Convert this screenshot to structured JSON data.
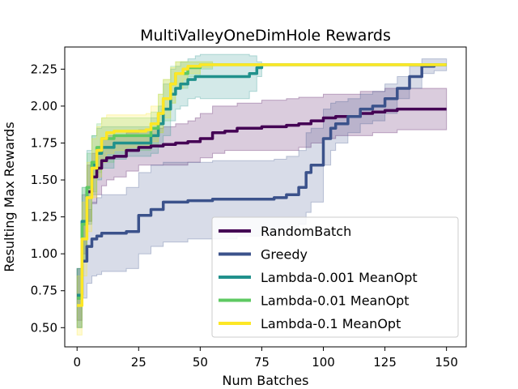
{
  "chart_data": {
    "type": "line",
    "title": "MultiValleyOneDimHole Rewards",
    "xlabel": "Num Batches",
    "ylabel": "Resulting Max Rewards",
    "xlim": [
      -5,
      158
    ],
    "ylim": [
      0.37,
      2.4
    ],
    "xticks": [
      0,
      25,
      50,
      75,
      100,
      125,
      150
    ],
    "xtick_labels": [
      "0",
      "25",
      "50",
      "75",
      "100",
      "125",
      "150"
    ],
    "yticks": [
      0.5,
      0.75,
      1.0,
      1.25,
      1.5,
      1.75,
      2.0,
      2.25
    ],
    "ytick_labels": [
      "0.50",
      "0.75",
      "1.00",
      "1.25",
      "1.50",
      "1.75",
      "2.00",
      "2.25"
    ],
    "grid": false,
    "legend_position": "lower-right",
    "series": [
      {
        "name": "RandomBatch",
        "color": "#440154",
        "x": [
          0,
          2,
          4,
          6,
          8,
          10,
          12,
          15,
          20,
          25,
          30,
          35,
          40,
          45,
          48,
          50,
          55,
          60,
          65,
          70,
          75,
          80,
          85,
          90,
          95,
          100,
          105,
          110,
          115,
          120,
          125,
          130,
          135,
          140,
          145,
          150
        ],
        "y": [
          0.72,
          1.2,
          1.42,
          1.52,
          1.58,
          1.63,
          1.65,
          1.66,
          1.7,
          1.72,
          1.73,
          1.74,
          1.75,
          1.76,
          1.76,
          1.78,
          1.82,
          1.83,
          1.85,
          1.85,
          1.86,
          1.86,
          1.87,
          1.88,
          1.9,
          1.92,
          1.93,
          1.93,
          1.95,
          1.96,
          1.97,
          1.98,
          1.98,
          1.98,
          1.98,
          1.98
        ],
        "lower": [
          0.55,
          1.0,
          1.22,
          1.34,
          1.4,
          1.46,
          1.5,
          1.52,
          1.56,
          1.6,
          1.6,
          1.6,
          1.6,
          1.62,
          1.62,
          1.65,
          1.68,
          1.7,
          1.7,
          1.7,
          1.7,
          1.7,
          1.7,
          1.72,
          1.75,
          1.78,
          1.8,
          1.8,
          1.8,
          1.82,
          1.82,
          1.84,
          1.84,
          1.84,
          1.84,
          1.84
        ],
        "upper": [
          0.9,
          1.4,
          1.6,
          1.68,
          1.72,
          1.78,
          1.8,
          1.8,
          1.82,
          1.84,
          1.85,
          1.86,
          1.88,
          1.9,
          1.92,
          1.95,
          2.0,
          2.0,
          2.02,
          2.02,
          2.04,
          2.04,
          2.05,
          2.06,
          2.06,
          2.08,
          2.08,
          2.08,
          2.1,
          2.1,
          2.12,
          2.12,
          2.12,
          2.12,
          2.12,
          2.12
        ]
      },
      {
        "name": "Greedy",
        "color": "#3b528b",
        "x": [
          0,
          2,
          4,
          6,
          8,
          10,
          15,
          20,
          25,
          30,
          35,
          40,
          45,
          50,
          55,
          60,
          65,
          70,
          75,
          80,
          85,
          90,
          93,
          95,
          100,
          103,
          105,
          110,
          115,
          120,
          125,
          130,
          135,
          140,
          145,
          150
        ],
        "y": [
          0.7,
          0.95,
          1.05,
          1.1,
          1.12,
          1.14,
          1.14,
          1.15,
          1.26,
          1.3,
          1.35,
          1.35,
          1.36,
          1.36,
          1.37,
          1.37,
          1.37,
          1.37,
          1.37,
          1.38,
          1.4,
          1.45,
          1.55,
          1.6,
          1.78,
          1.85,
          1.88,
          1.93,
          1.98,
          2.0,
          2.05,
          2.12,
          2.2,
          2.27,
          2.28,
          2.28
        ],
        "lower": [
          0.5,
          0.7,
          0.8,
          0.85,
          0.86,
          0.88,
          0.88,
          0.9,
          1.0,
          1.05,
          1.08,
          1.08,
          1.1,
          1.1,
          1.1,
          1.1,
          1.12,
          1.12,
          1.12,
          1.14,
          1.16,
          1.2,
          1.28,
          1.35,
          1.6,
          1.7,
          1.75,
          1.82,
          1.88,
          1.9,
          1.95,
          2.05,
          2.12,
          2.22,
          2.24,
          2.24
        ],
        "upper": [
          0.9,
          1.2,
          1.3,
          1.35,
          1.38,
          1.4,
          1.4,
          1.45,
          1.55,
          1.6,
          1.62,
          1.62,
          1.62,
          1.62,
          1.63,
          1.63,
          1.63,
          1.63,
          1.63,
          1.64,
          1.66,
          1.7,
          1.82,
          1.85,
          1.98,
          2.02,
          2.03,
          2.05,
          2.08,
          2.1,
          2.15,
          2.2,
          2.27,
          2.32,
          2.32,
          2.32
        ]
      },
      {
        "name": "Lambda-0.001 MeanOpt",
        "color": "#21918c",
        "x": [
          0,
          2,
          4,
          6,
          8,
          10,
          15,
          20,
          25,
          30,
          33,
          35,
          38,
          40,
          42,
          45,
          48,
          50,
          55,
          60,
          65,
          70,
          73,
          75,
          80,
          90,
          100,
          110,
          120,
          130,
          140,
          150
        ],
        "y": [
          0.72,
          1.22,
          1.45,
          1.6,
          1.68,
          1.72,
          1.75,
          1.75,
          1.75,
          1.8,
          1.88,
          1.98,
          2.08,
          2.12,
          2.15,
          2.18,
          2.2,
          2.2,
          2.2,
          2.2,
          2.2,
          2.22,
          2.26,
          2.28,
          2.28,
          2.28,
          2.28,
          2.28,
          2.28,
          2.28,
          2.28,
          2.28
        ],
        "lower": [
          0.5,
          0.95,
          1.2,
          1.4,
          1.5,
          1.58,
          1.64,
          1.66,
          1.66,
          1.68,
          1.72,
          1.8,
          1.9,
          1.98,
          2.0,
          2.05,
          2.06,
          2.05,
          2.05,
          2.05,
          2.05,
          2.1,
          2.2,
          2.28,
          2.28,
          2.28,
          2.28,
          2.28,
          2.28,
          2.28,
          2.28,
          2.28
        ],
        "upper": [
          0.9,
          1.45,
          1.7,
          1.8,
          1.85,
          1.86,
          1.86,
          1.86,
          1.86,
          1.92,
          2.0,
          2.15,
          2.25,
          2.27,
          2.3,
          2.32,
          2.34,
          2.35,
          2.35,
          2.35,
          2.35,
          2.34,
          2.3,
          2.28,
          2.28,
          2.28,
          2.28,
          2.28,
          2.28,
          2.28,
          2.28,
          2.28
        ]
      },
      {
        "name": "Lambda-0.01 MeanOpt",
        "color": "#5ec962",
        "x": [
          0,
          2,
          4,
          6,
          8,
          10,
          15,
          20,
          25,
          30,
          33,
          35,
          38,
          40,
          45,
          50,
          55,
          60,
          70,
          80,
          90,
          100,
          110,
          120,
          130,
          140,
          150
        ],
        "y": [
          0.7,
          1.2,
          1.45,
          1.62,
          1.72,
          1.78,
          1.8,
          1.8,
          1.8,
          1.85,
          1.95,
          2.05,
          2.15,
          2.22,
          2.26,
          2.28,
          2.28,
          2.28,
          2.28,
          2.28,
          2.28,
          2.28,
          2.28,
          2.28,
          2.28,
          2.28,
          2.28
        ],
        "lower": [
          0.5,
          0.95,
          1.22,
          1.42,
          1.55,
          1.62,
          1.68,
          1.7,
          1.7,
          1.74,
          1.82,
          1.9,
          2.02,
          2.12,
          2.2,
          2.25,
          2.28,
          2.28,
          2.28,
          2.28,
          2.28,
          2.28,
          2.28,
          2.28,
          2.28,
          2.28,
          2.28
        ],
        "upper": [
          0.9,
          1.45,
          1.68,
          1.8,
          1.88,
          1.92,
          1.92,
          1.92,
          1.92,
          1.96,
          2.08,
          2.18,
          2.27,
          2.3,
          2.3,
          2.3,
          2.28,
          2.28,
          2.28,
          2.28,
          2.28,
          2.28,
          2.28,
          2.28,
          2.28,
          2.28,
          2.28
        ]
      },
      {
        "name": "Lambda-0.1 MeanOpt",
        "color": "#fde725",
        "x": [
          0,
          2,
          4,
          6,
          8,
          10,
          12,
          15,
          20,
          25,
          28,
          30,
          33,
          35,
          38,
          40,
          43,
          45,
          50,
          55,
          60,
          70,
          80,
          90,
          100,
          110,
          120,
          130,
          140,
          150
        ],
        "y": [
          0.65,
          1.1,
          1.38,
          1.58,
          1.7,
          1.78,
          1.82,
          1.83,
          1.83,
          1.83,
          1.84,
          1.88,
          1.95,
          2.05,
          2.15,
          2.22,
          2.25,
          2.27,
          2.28,
          2.28,
          2.28,
          2.28,
          2.28,
          2.28,
          2.28,
          2.28,
          2.28,
          2.28,
          2.28,
          2.28
        ],
        "lower": [
          0.45,
          0.85,
          1.15,
          1.38,
          1.52,
          1.62,
          1.68,
          1.7,
          1.72,
          1.72,
          1.73,
          1.76,
          1.82,
          1.92,
          2.02,
          2.12,
          2.18,
          2.22,
          2.26,
          2.28,
          2.28,
          2.28,
          2.28,
          2.28,
          2.28,
          2.28,
          2.28,
          2.28,
          2.28,
          2.28
        ],
        "upper": [
          0.85,
          1.35,
          1.62,
          1.78,
          1.86,
          1.92,
          1.94,
          1.94,
          1.94,
          1.94,
          1.95,
          2.0,
          2.08,
          2.18,
          2.26,
          2.3,
          2.3,
          2.3,
          2.3,
          2.28,
          2.28,
          2.28,
          2.28,
          2.28,
          2.28,
          2.28,
          2.28,
          2.28,
          2.28,
          2.28
        ]
      }
    ]
  }
}
